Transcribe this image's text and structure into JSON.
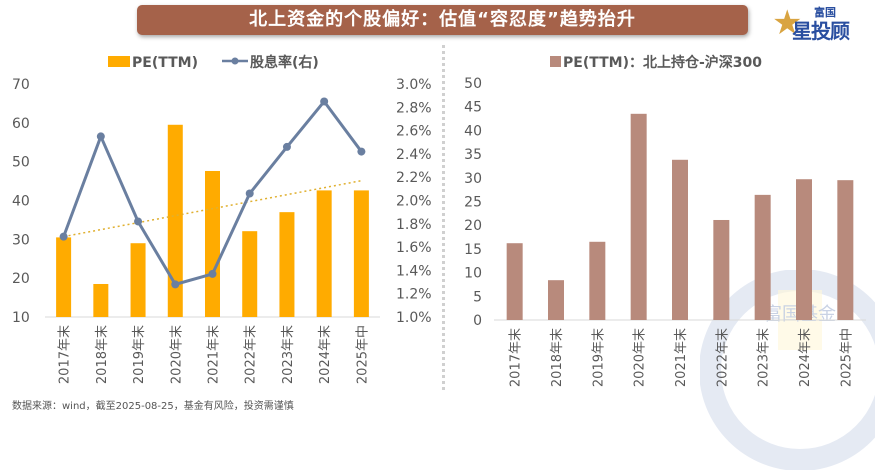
{
  "header": {
    "title": "北上资金的个股偏好：估值“容忍度”趋势抬升",
    "logo_small": "富国",
    "logo_big": "星投顾",
    "logo_icon": "star-icon"
  },
  "footer": {
    "source": "数据来源：wind，截至2025-08-25，基金有风险，投资需谨慎"
  },
  "watermark": {
    "text": "富国基金"
  },
  "colors": {
    "banner": "#a5624a",
    "pe_bar": "#ffab00",
    "dividend_line": "#6a7fa0",
    "trendline": "#e0b030",
    "right_bar": "#b88a7c",
    "axis_text": "#595959"
  },
  "chart_data": [
    {
      "type": "bar",
      "title": "",
      "legend": [
        "PE(TTM)",
        "股息率(右)"
      ],
      "legend_position": "top-center",
      "categories": [
        "2017年末",
        "2018年末",
        "2019年末",
        "2020年末",
        "2021年末",
        "2022年末",
        "2023年末",
        "2024年末",
        "2025年中"
      ],
      "series": [
        {
          "name": "PE(TTM)",
          "type": "bar",
          "axis": "left",
          "values": [
            30.5,
            18.5,
            29.0,
            59.5,
            47.6,
            32.1,
            37.0,
            42.6,
            42.6
          ]
        },
        {
          "name": "股息率(右)",
          "type": "line",
          "axis": "right",
          "unit": "%",
          "values": [
            1.69,
            2.55,
            1.82,
            1.28,
            1.37,
            2.06,
            2.46,
            2.85,
            2.42
          ]
        },
        {
          "name": "trendline",
          "type": "dotted-line",
          "axis": "right",
          "unit": "%",
          "values_start_end": [
            1.69,
            2.17
          ]
        }
      ],
      "ylim_left": [
        10,
        70
      ],
      "yticks_left": [
        "10",
        "20",
        "30",
        "40",
        "50",
        "60",
        "70"
      ],
      "ylim_right": [
        1.0,
        3.0
      ],
      "yticks_right": [
        "1.0%",
        "1.2%",
        "1.4%",
        "1.6%",
        "1.8%",
        "2.0%",
        "2.2%",
        "2.4%",
        "2.6%",
        "2.8%",
        "3.0%"
      ],
      "grid": false
    },
    {
      "type": "bar",
      "title": "",
      "legend": [
        "PE(TTM)：北上持仓-沪深300"
      ],
      "legend_position": "top-center",
      "categories": [
        "2017年末",
        "2018年末",
        "2019年末",
        "2020年末",
        "2021年末",
        "2022年末",
        "2023年末",
        "2024年末",
        "2025年中"
      ],
      "series": [
        {
          "name": "PE(TTM)：北上持仓-沪深300",
          "values": [
            16.2,
            8.4,
            16.5,
            43.5,
            33.8,
            21.1,
            26.4,
            29.7,
            29.5
          ]
        }
      ],
      "ylim": [
        0,
        50
      ],
      "yticks": [
        "0",
        "5",
        "10",
        "15",
        "20",
        "25",
        "30",
        "35",
        "40",
        "45",
        "50"
      ],
      "grid": false
    }
  ]
}
